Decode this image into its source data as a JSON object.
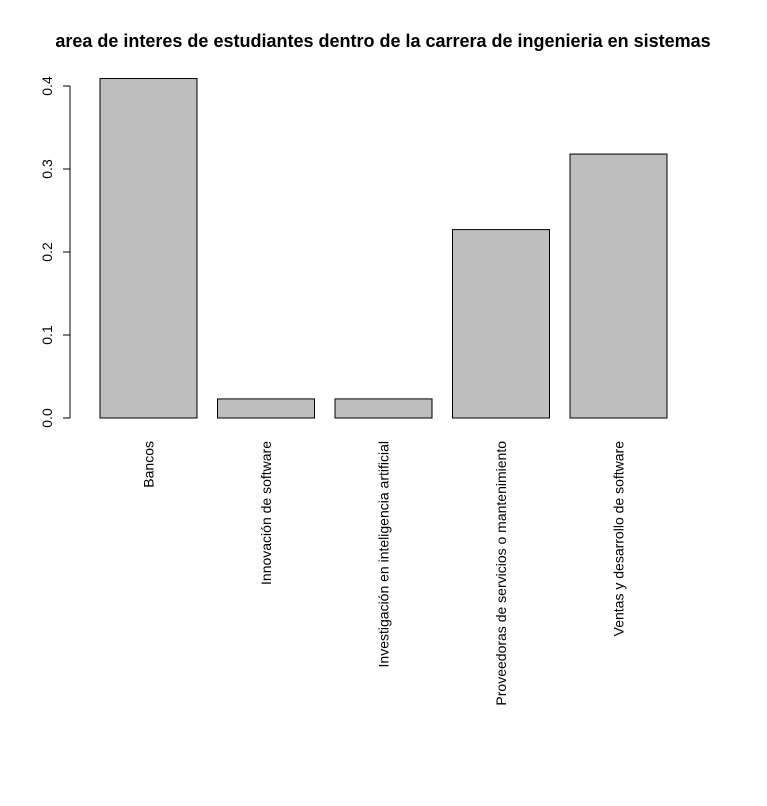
{
  "chart_data": {
    "type": "bar",
    "title": "area de interes de estudiantes dentro de la carrera de ingenieria en sistemas",
    "categories": [
      "Bancos",
      "Innovación de software",
      "Investigación en inteligencia artificial",
      "Proveedoras de servicios o mantenimiento",
      "Ventas y desarrollo de software"
    ],
    "values": [
      0.409,
      0.023,
      0.023,
      0.227,
      0.318
    ],
    "yticks": [
      0.0,
      0.1,
      0.2,
      0.3,
      0.4
    ],
    "ytick_labels": [
      "0.0",
      "0.1",
      "0.2",
      "0.3",
      "0.4"
    ],
    "ylim": [
      0,
      0.41
    ],
    "xlabel": "",
    "ylabel": "",
    "grid": false,
    "colors": {
      "bar_fill": "#bebebe",
      "bar_stroke": "#000000"
    }
  }
}
